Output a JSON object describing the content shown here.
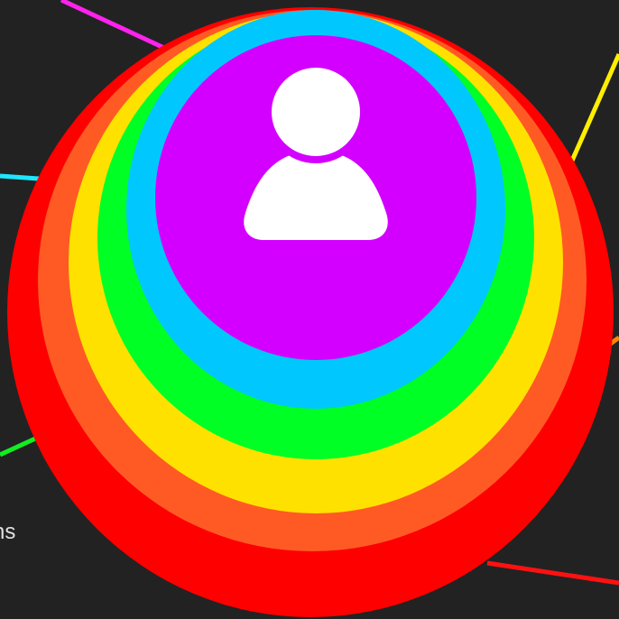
{
  "background_color": "#222222",
  "layers": [
    {
      "name": "red",
      "color": "#ff0000"
    },
    {
      "name": "orange",
      "color": "#ff5a24"
    },
    {
      "name": "yellow",
      "color": "#ffe100"
    },
    {
      "name": "green",
      "color": "#00ff24"
    },
    {
      "name": "blue",
      "color": "#00c8ff"
    },
    {
      "name": "purple",
      "color": "#d400ff"
    }
  ],
  "person_icon": {
    "name": "person-icon",
    "color": "#ffffff"
  },
  "connectors": [
    {
      "name": "magenta",
      "color": "#ff22ee"
    },
    {
      "name": "cyan",
      "color": "#1ee6ff"
    },
    {
      "name": "green",
      "color": "#11ee22"
    },
    {
      "name": "yellow",
      "color": "#ffee00"
    },
    {
      "name": "orange",
      "color": "#ff8800"
    },
    {
      "name": "red",
      "color": "#ff1111"
    }
  ],
  "partial_text": "ns"
}
